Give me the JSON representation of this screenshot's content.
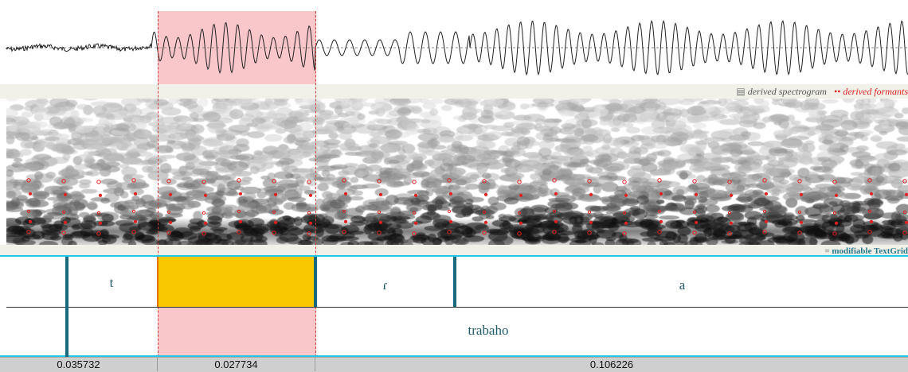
{
  "spectrogram_panel": {
    "legend_spectrogram": "derived spectrogram",
    "legend_formants": "derived formants"
  },
  "textgrid": {
    "title": "modifiable TextGrid",
    "tier1_labels": [
      "t",
      "ɾ",
      "a"
    ],
    "tier2_label": "trabaho"
  },
  "durations": [
    "0.035732",
    "0.027734",
    "0.106226"
  ],
  "colors": {
    "selection": "#f9c6c9",
    "selected_interval": "#f8c800",
    "boundary": "#1a6a7e",
    "tier_line": "#23c6e4",
    "formant_dots": "#e02020"
  }
}
